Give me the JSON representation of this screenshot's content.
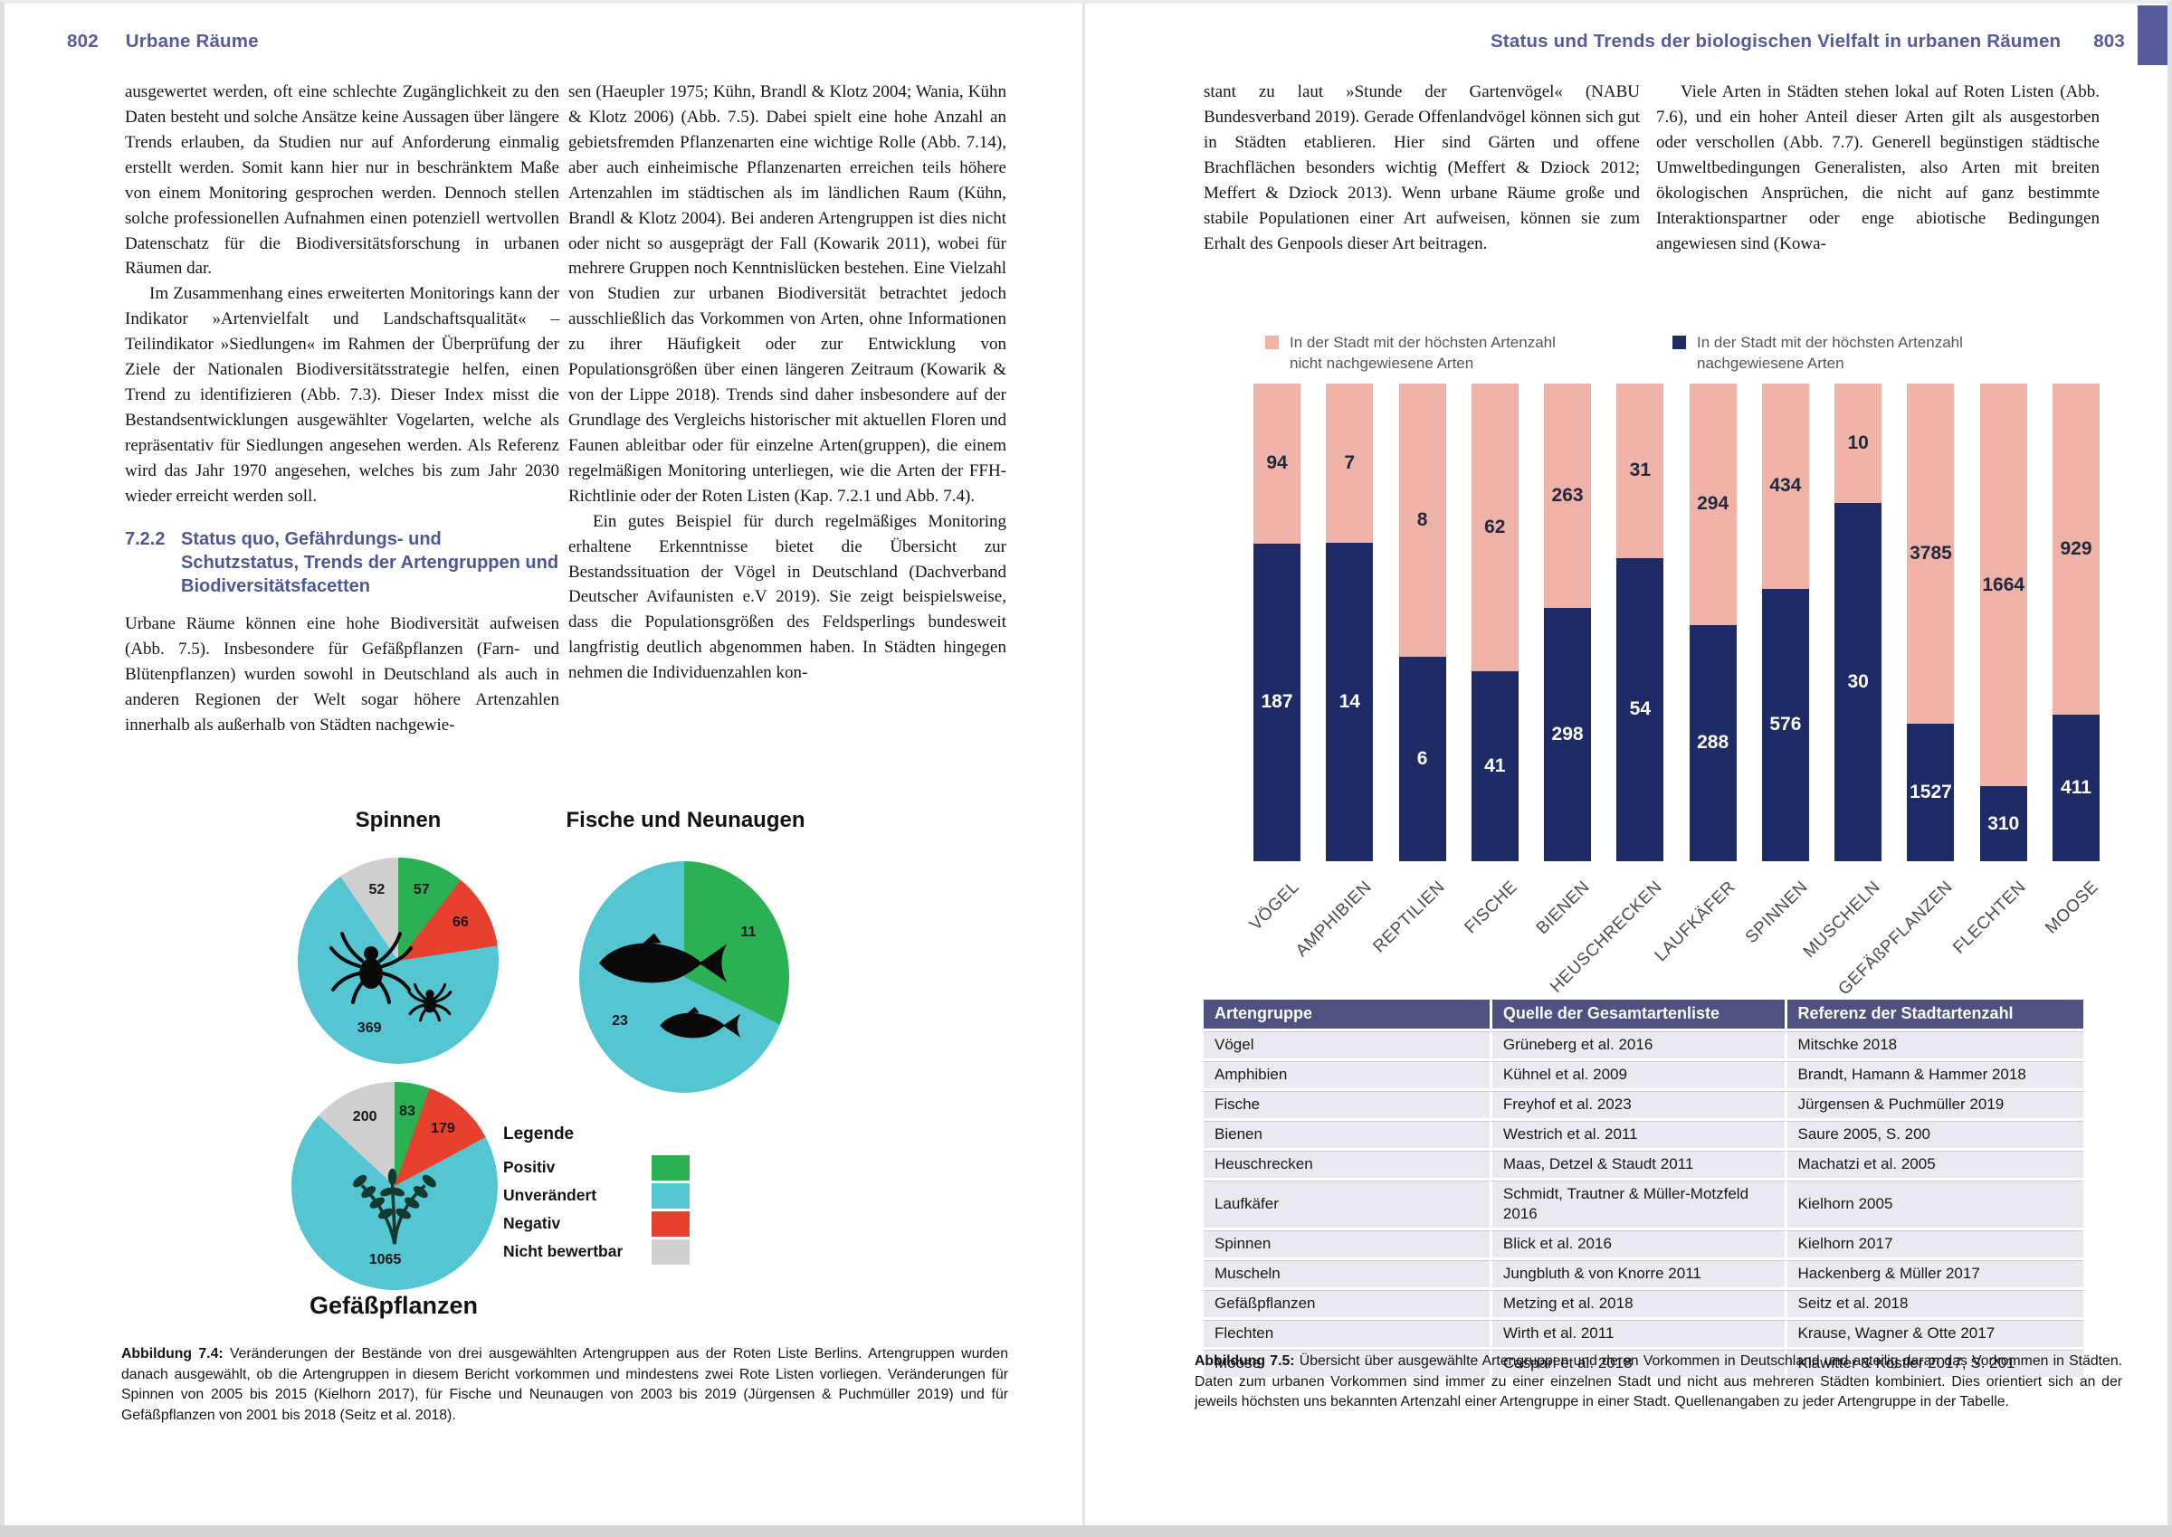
{
  "left": {
    "page_number": "802",
    "header_title": "Urbane Räume",
    "col1_paras": [
      {
        "text": "ausgewertet werden, oft eine schlechte Zugänglichkeit zu den Daten besteht und solche Ansätze keine Aussagen über längere Trends erlauben, da Studien nur auf Anforderung einmalig erstellt werden. Somit kann hier nur in beschränktem Maße von einem Monitoring gesprochen werden. Dennoch stellen solche professionellen Aufnahmen einen potenziell wertvollen Datenschatz für die Biodiversitätsforschung in urbanen Räumen dar.",
        "indent": false
      },
      {
        "text": "Im Zusammenhang eines erweiterten Monitorings kann der Indikator »Artenvielfalt und Landschaftsqualität« – Teilindikator »Siedlungen« im Rahmen der Überprüfung der Ziele der Nationalen Biodiversitätsstrategie helfen, einen Trend zu identifizieren (Abb. 7.3). Dieser Index misst die Bestandsentwicklungen ausgewählter Vogelarten, welche als repräsentativ für Siedlungen angesehen werden. Als Referenz wird das Jahr 1970 angesehen, welches bis zum Jahr 2030 wieder erreicht werden soll.",
        "indent": true
      }
    ],
    "section_number": "7.2.2",
    "section_title": "Status quo, Gefährdungs- und Schutzstatus, Trends der Artengruppen und Biodiversitätsfacetten",
    "col1_paras2": [
      {
        "text": "Urbane Räume können eine hohe Biodiversität aufweisen (Abb. 7.5). Insbesondere für Gefäßpflanzen (Farn- und Blütenpflanzen) wurden sowohl in Deutschland als auch in anderen Regionen der Welt sogar höhere Artenzahlen innerhalb als außerhalb von Städten nachgewie-",
        "indent": false
      }
    ],
    "col2_paras": [
      {
        "text": "sen (Haeupler 1975; Kühn, Brandl & Klotz 2004; Wania, Kühn & Klotz 2006) (Abb. 7.5). Dabei spielt eine hohe Anzahl an gebietsfremden Pflanzenarten eine wichtige Rolle (Abb. 7.14), aber auch einheimische Pflanzenarten erreichen teils höhere Artenzahlen im städtischen als im ländlichen Raum (Kühn, Brandl & Klotz 2004). Bei anderen Artengruppen ist dies nicht oder nicht so ausgeprägt der Fall (Kowarik 2011), wobei für mehrere Gruppen noch Kenntnislücken bestehen. Eine Vielzahl von Studien zur urbanen Biodiversität betrachtet jedoch ausschließlich das Vorkommen von Arten, ohne Informationen zu ihrer Häufigkeit oder zur Entwicklung von Populationsgrößen über einen längeren Zeitraum (Kowarik & von der Lippe 2018). Trends sind daher insbesondere auf der Grundlage des Vergleichs historischer mit aktuellen Floren und Faunen ableitbar oder für einzelne Arten(gruppen), die einem regelmäßigen Monitoring unterliegen, wie die Arten der FFH-Richtlinie oder der Roten Listen (Kap. 7.2.1 und Abb. 7.4).",
        "indent": false
      },
      {
        "text": "Ein gutes Beispiel für durch regelmäßiges Monitoring erhaltene Erkenntnisse bietet die Übersicht zur Bestandssituation der Vögel in Deutschland (Dachverband Deutscher Avifaunisten e.V 2019). Sie zeigt beispielsweise, dass die Populationsgrößen des Feldsperlings bundesweit langfristig deutlich abgenommen haben. In Städten hingegen nehmen die Individuenzahlen kon-",
        "indent": true
      }
    ],
    "caption_label": "Abbildung 7.4:",
    "caption_text": "Veränderungen der Bestände von drei ausgewählten Artengruppen aus der Roten Liste Berlins. Artengruppen wurden danach ausgewählt, ob die Artengruppen in diesem Bericht vorkommen und mindestens zwei Rote Listen vorliegen. Veränderungen für Spinnen von 2005 bis 2015 (Kielhorn 2017), für Fische und Neunaugen von 2003 bis 2019 (Jürgensen & Puchmüller 2019) und für Gefäßpflanzen von 2001 bis 2018 (Seitz et al. 2018)."
  },
  "right": {
    "page_number": "803",
    "header_title": "Status und Trends der biologischen Vielfalt in urbanen Räumen",
    "col1_paras": [
      {
        "text": "stant zu laut »Stunde der Gartenvögel« (NABU Bundesverband 2019). Gerade Offenlandvögel können sich gut in Städten etablieren. Hier sind Gärten und offene Brachflächen besonders wichtig (Meffert & Dziock 2012; Meffert & Dziock 2013). Wenn urbane Räume große und stabile Populationen einer Art aufweisen, können sie zum Erhalt des Genpools dieser Art beitragen.",
        "indent": false
      }
    ],
    "col2_paras": [
      {
        "text": "Viele Arten in Städten stehen lokal auf Roten Listen (Abb. 7.6), und ein hoher Anteil dieser Arten gilt als ausgestorben oder verschollen (Abb. 7.7). Generell begünstigen städtische Umweltbedingungen Generalisten, also Arten mit breiten ökologischen Ansprüchen, die nicht auf ganz bestimmte Interaktionspartner oder enge abiotische Bedingungen angewiesen sind (Kowa-",
        "indent": true
      }
    ],
    "caption_label": "Abbildung 7.5:",
    "caption_text": "Übersicht über ausgewählte Artengruppen und deren Vorkommen in Deutschland und anteilig daran das Vorkommen in Städten. Daten zum urbanen Vorkommen sind immer zu einer einzelnen Stadt und nicht aus mehreren Städten kombiniert. Dies orientiert sich an der jeweils höchsten uns bekannten Artenzahl einer Artengruppe in einer Stadt. Quellenangaben zu jeder Artengruppe in der Tabelle."
  },
  "pie_legend": {
    "title": "Legende",
    "items": [
      {
        "label": "Positiv",
        "color": "#2bb054"
      },
      {
        "label": "Unverändert",
        "color": "#55c6d1"
      },
      {
        "label": "Negativ",
        "color": "#e7402f"
      },
      {
        "label": "Nicht bewertbar",
        "color": "#cfcfcf"
      }
    ]
  },
  "bar_legend": [
    {
      "color": "#efb2a8",
      "lines": [
        "In der Stadt mit der höchsten Artenzahl",
        "nicht nachgewiesene Arten"
      ]
    },
    {
      "color": "#1f2b66",
      "lines": [
        "In der Stadt mit der höchsten Artenzahl",
        "nachgewiesene Arten"
      ]
    }
  ],
  "table": {
    "headers": [
      "Artengruppe",
      "Quelle der Gesamtartenliste",
      "Referenz der Stadtartenzahl"
    ],
    "rows": [
      [
        "Vögel",
        "Grüneberg et al. 2016",
        "Mitschke 2018"
      ],
      [
        "Amphibien",
        "Kühnel et al. 2009",
        "Brandt, Hamann & Hammer 2018"
      ],
      [
        "Fische",
        "Freyhof et al. 2023",
        "Jürgensen & Puchmüller 2019"
      ],
      [
        "Bienen",
        "Westrich et al. 2011",
        "Saure 2005, S. 200"
      ],
      [
        "Heuschrecken",
        "Maas, Detzel & Staudt 2011",
        "Machatzi et al. 2005"
      ],
      [
        "Laufkäfer",
        "Schmidt, Trautner & Müller-Motzfeld 2016",
        "Kielhorn 2005"
      ],
      [
        "Spinnen",
        "Blick et al. 2016",
        "Kielhorn 2017"
      ],
      [
        "Muscheln",
        "Jungbluth & von Knorre 2011",
        "Hackenberg & Müller 2017"
      ],
      [
        "Gefäßpflanzen",
        "Metzing et al. 2018",
        "Seitz et al. 2018"
      ],
      [
        "Flechten",
        "Wirth et al. 2011",
        "Krause, Wagner & Otte 2017"
      ],
      [
        "Moose",
        "Caspari et al. 2018",
        "Klawitter & Köstler 2017, S. 201"
      ]
    ]
  },
  "chart_data": [
    {
      "type": "pie",
      "title": "Spinnen",
      "slices": [
        {
          "label": "Positiv",
          "value": 57,
          "color": "#2bb054"
        },
        {
          "label": "Negativ",
          "value": 66,
          "color": "#e7402f"
        },
        {
          "label": "Unverändert",
          "value": 369,
          "color": "#55c6d1"
        },
        {
          "label": "Nicht bewertbar",
          "value": 52,
          "color": "#cfcfcf"
        }
      ]
    },
    {
      "type": "pie",
      "title": "Fische und Neunaugen",
      "slices": [
        {
          "label": "Positiv",
          "value": 11,
          "color": "#2bb054"
        },
        {
          "label": "Unverändert",
          "value": 23,
          "color": "#55c6d1"
        }
      ]
    },
    {
      "type": "pie",
      "title": "Gefäßpflanzen",
      "slices": [
        {
          "label": "Positiv",
          "value": 83,
          "color": "#2bb054"
        },
        {
          "label": "Negativ",
          "value": 179,
          "color": "#e7402f"
        },
        {
          "label": "Unverändert",
          "value": 1065,
          "color": "#55c6d1"
        },
        {
          "label": "Nicht bewertbar",
          "value": 200,
          "color": "#cfcfcf"
        }
      ]
    },
    {
      "type": "bar",
      "stacked": true,
      "percent_stacked": true,
      "legend_position": "top",
      "categories": [
        "VÖGEL",
        "AMPHIBIEN",
        "REPTILIEN",
        "FISCHE",
        "BIENEN",
        "HEUSCHRECKEN",
        "LAUFKÄFER",
        "SPINNEN",
        "MUSCHELN",
        "GEFÄßPFLANZEN",
        "FLECHTEN",
        "MOOSE"
      ],
      "series": [
        {
          "name": "In der Stadt mit der höchsten Artenzahl nicht nachgewiesene Arten",
          "color": "#efb2a8",
          "values": [
            94,
            7,
            8,
            62,
            263,
            31,
            294,
            434,
            10,
            3785,
            1664,
            929
          ]
        },
        {
          "name": "In der Stadt mit der höchsten Artenzahl nachgewiesene Arten",
          "color": "#1f2b66",
          "values": [
            187,
            14,
            6,
            41,
            298,
            54,
            288,
            576,
            30,
            1527,
            310,
            411
          ]
        }
      ]
    }
  ],
  "colors": {
    "accent_purple": "#565a9e",
    "section_heading": "#4d5795",
    "table_header_bg": "#515181",
    "table_row_bg": "#e9e9ef",
    "bar_pink": "#efb2a8",
    "bar_navy": "#1f2b66",
    "pie_green": "#2bb054",
    "pie_teal": "#55c6d1",
    "pie_red": "#e7402f",
    "pie_gray": "#cfcfcf"
  },
  "icons": {
    "spider-icon": "black spider silhouette (svg shape)",
    "fish-icon": "black fish silhouette (svg shape)",
    "plant-icon": "dark fern/plant sprig silhouette (svg shape)"
  }
}
